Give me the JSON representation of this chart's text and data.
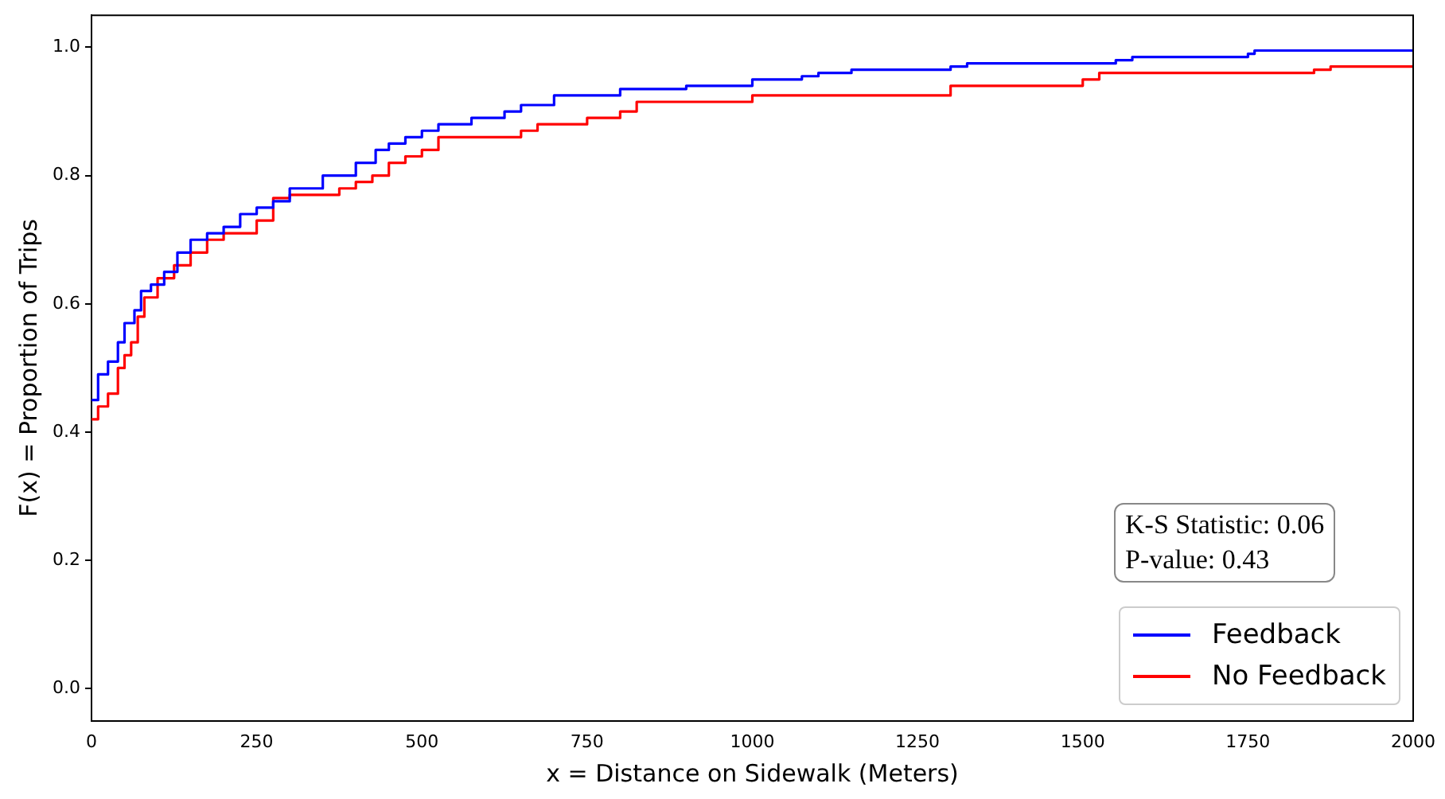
{
  "chart_data": {
    "type": "step",
    "xlabel": "x = Distance on Sidewalk (Meters)",
    "ylabel": "F(x) = Proportion of Trips",
    "xlim": [
      0,
      2000
    ],
    "xticks": [
      0,
      250,
      500,
      750,
      1000,
      1250,
      1500,
      1750,
      2000
    ],
    "ylim": [
      -0.05,
      1.05
    ],
    "yticks": [
      {
        "value": 0,
        "label": "0.0"
      },
      0.2,
      0.4,
      0.6,
      0.8,
      {
        "value": 1,
        "label": "1.0"
      }
    ],
    "grid": false,
    "legend": "bottom right",
    "marker": "none",
    "line_style": "solid",
    "annotations": [
      "K-S Statistic: 0.06",
      "P-value: 0.43"
    ],
    "series": [
      {
        "name": "Feedback",
        "color": "#0000ff",
        "x": [
          0,
          10,
          25,
          40,
          50,
          65,
          75,
          90,
          110,
          130,
          150,
          175,
          200,
          225,
          250,
          275,
          300,
          350,
          400,
          430,
          450,
          475,
          500,
          525,
          575,
          625,
          650,
          700,
          800,
          900,
          1000,
          1075,
          1100,
          1150,
          1300,
          1325,
          1550,
          1575,
          1750,
          1760,
          2000
        ],
        "values": [
          0.45,
          0.49,
          0.51,
          0.54,
          0.57,
          0.59,
          0.62,
          0.63,
          0.65,
          0.68,
          0.7,
          0.71,
          0.72,
          0.74,
          0.75,
          0.76,
          0.78,
          0.8,
          0.82,
          0.84,
          0.85,
          0.86,
          0.87,
          0.88,
          0.89,
          0.9,
          0.91,
          0.925,
          0.935,
          0.94,
          0.95,
          0.955,
          0.96,
          0.965,
          0.97,
          0.975,
          0.98,
          0.985,
          0.99,
          0.995,
          0.995
        ]
      },
      {
        "name": "No Feedback",
        "color": "#ff0000",
        "x": [
          0,
          10,
          25,
          40,
          50,
          60,
          70,
          80,
          100,
          125,
          150,
          175,
          200,
          250,
          275,
          300,
          375,
          400,
          425,
          450,
          475,
          500,
          525,
          650,
          675,
          750,
          800,
          825,
          1000,
          1300,
          1500,
          1525,
          1850,
          1875,
          2000
        ],
        "values": [
          0.42,
          0.44,
          0.46,
          0.5,
          0.52,
          0.54,
          0.58,
          0.61,
          0.64,
          0.66,
          0.68,
          0.7,
          0.71,
          0.73,
          0.765,
          0.77,
          0.78,
          0.79,
          0.8,
          0.82,
          0.83,
          0.84,
          0.86,
          0.87,
          0.88,
          0.89,
          0.9,
          0.915,
          0.925,
          0.94,
          0.95,
          0.96,
          0.965,
          0.97,
          0.97
        ]
      }
    ]
  }
}
